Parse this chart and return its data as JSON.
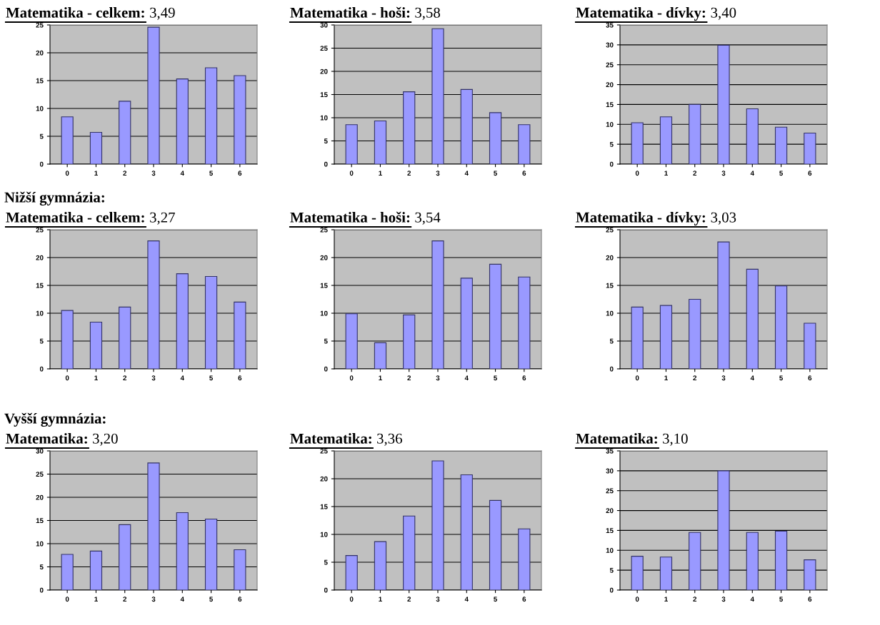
{
  "chart_data": [
    {
      "type": "bar",
      "title": "Matematika - celkem: 3,49",
      "categories": [
        "0",
        "1",
        "2",
        "3",
        "4",
        "5",
        "6"
      ],
      "values": [
        8.5,
        5.7,
        11.3,
        24.6,
        15.3,
        17.3,
        15.9
      ],
      "color": "#9999ff",
      "ylim": [
        0,
        25
      ],
      "yticks": [
        0,
        5,
        10,
        15,
        20,
        25
      ],
      "grid": "y"
    },
    {
      "type": "bar",
      "title": "Matematika - hoši: 3,58",
      "categories": [
        "0",
        "1",
        "2",
        "3",
        "4",
        "5",
        "6"
      ],
      "values": [
        8.5,
        9.3,
        15.6,
        29.2,
        16.1,
        11.1,
        8.5
      ],
      "color": "#9999ff",
      "ylim": [
        0,
        30
      ],
      "yticks": [
        0,
        5,
        10,
        15,
        20,
        25,
        30
      ],
      "grid": "y"
    },
    {
      "type": "bar",
      "title": "Matematika - dívky: 3,40",
      "categories": [
        "0",
        "1",
        "2",
        "3",
        "4",
        "5",
        "6"
      ],
      "values": [
        10.4,
        11.9,
        15.0,
        29.9,
        13.9,
        9.3,
        7.8
      ],
      "color": "#9999ff",
      "ylim": [
        0,
        35
      ],
      "yticks": [
        0,
        5,
        10,
        15,
        20,
        25,
        30,
        35
      ],
      "grid": "y"
    },
    {
      "type": "bar",
      "title": "Matematika - celkem: 3,27",
      "annotations": [
        "Nižší gymnázia:"
      ],
      "categories": [
        "0",
        "1",
        "2",
        "3",
        "4",
        "5",
        "6"
      ],
      "values": [
        10.5,
        8.4,
        11.1,
        23.0,
        17.1,
        16.6,
        12.0
      ],
      "color": "#9999ff",
      "ylim": [
        0,
        25
      ],
      "yticks": [
        0,
        5,
        10,
        15,
        20,
        25
      ],
      "grid": "y"
    },
    {
      "type": "bar",
      "title": "Matematika - hoši: 3,54",
      "categories": [
        "0",
        "1",
        "2",
        "3",
        "4",
        "5",
        "6"
      ],
      "values": [
        9.9,
        4.7,
        9.7,
        23.0,
        16.3,
        18.8,
        16.5
      ],
      "color": "#9999ff",
      "ylim": [
        0,
        25
      ],
      "yticks": [
        0,
        5,
        10,
        15,
        20,
        25
      ],
      "grid": "y"
    },
    {
      "type": "bar",
      "title": "Matematika - dívky: 3,03",
      "categories": [
        "0",
        "1",
        "2",
        "3",
        "4",
        "5",
        "6"
      ],
      "values": [
        11.1,
        11.4,
        12.5,
        22.8,
        17.9,
        14.9,
        8.2
      ],
      "color": "#9999ff",
      "ylim": [
        0,
        25
      ],
      "yticks": [
        0,
        5,
        10,
        15,
        20,
        25
      ],
      "grid": "y"
    },
    {
      "type": "bar",
      "title": "Matematika: 3,20",
      "annotations": [
        "Vyšší gymnázia:"
      ],
      "categories": [
        "0",
        "1",
        "2",
        "3",
        "4",
        "5",
        "6"
      ],
      "values": [
        7.7,
        8.4,
        14.1,
        27.4,
        16.7,
        15.3,
        8.7
      ],
      "color": "#9999ff",
      "ylim": [
        0,
        30
      ],
      "yticks": [
        0,
        5,
        10,
        15,
        20,
        25,
        30
      ],
      "grid": "y"
    },
    {
      "type": "bar",
      "title": "Matematika: 3,36",
      "categories": [
        "0",
        "1",
        "2",
        "3",
        "4",
        "5",
        "6"
      ],
      "values": [
        6.2,
        8.7,
        13.3,
        23.2,
        20.7,
        16.1,
        11.0
      ],
      "color": "#9999ff",
      "ylim": [
        0,
        25
      ],
      "yticks": [
        0,
        5,
        10,
        15,
        20,
        25
      ],
      "grid": "y"
    },
    {
      "type": "bar",
      "title": "Matematika: 3,10",
      "categories": [
        "0",
        "1",
        "2",
        "3",
        "4",
        "5",
        "6"
      ],
      "values": [
        8.5,
        8.3,
        14.5,
        30.0,
        14.5,
        14.8,
        7.6
      ],
      "color": "#9999ff",
      "ylim": [
        0,
        35
      ],
      "yticks": [
        0,
        5,
        10,
        15,
        20,
        25,
        30,
        35
      ],
      "grid": "y"
    }
  ]
}
